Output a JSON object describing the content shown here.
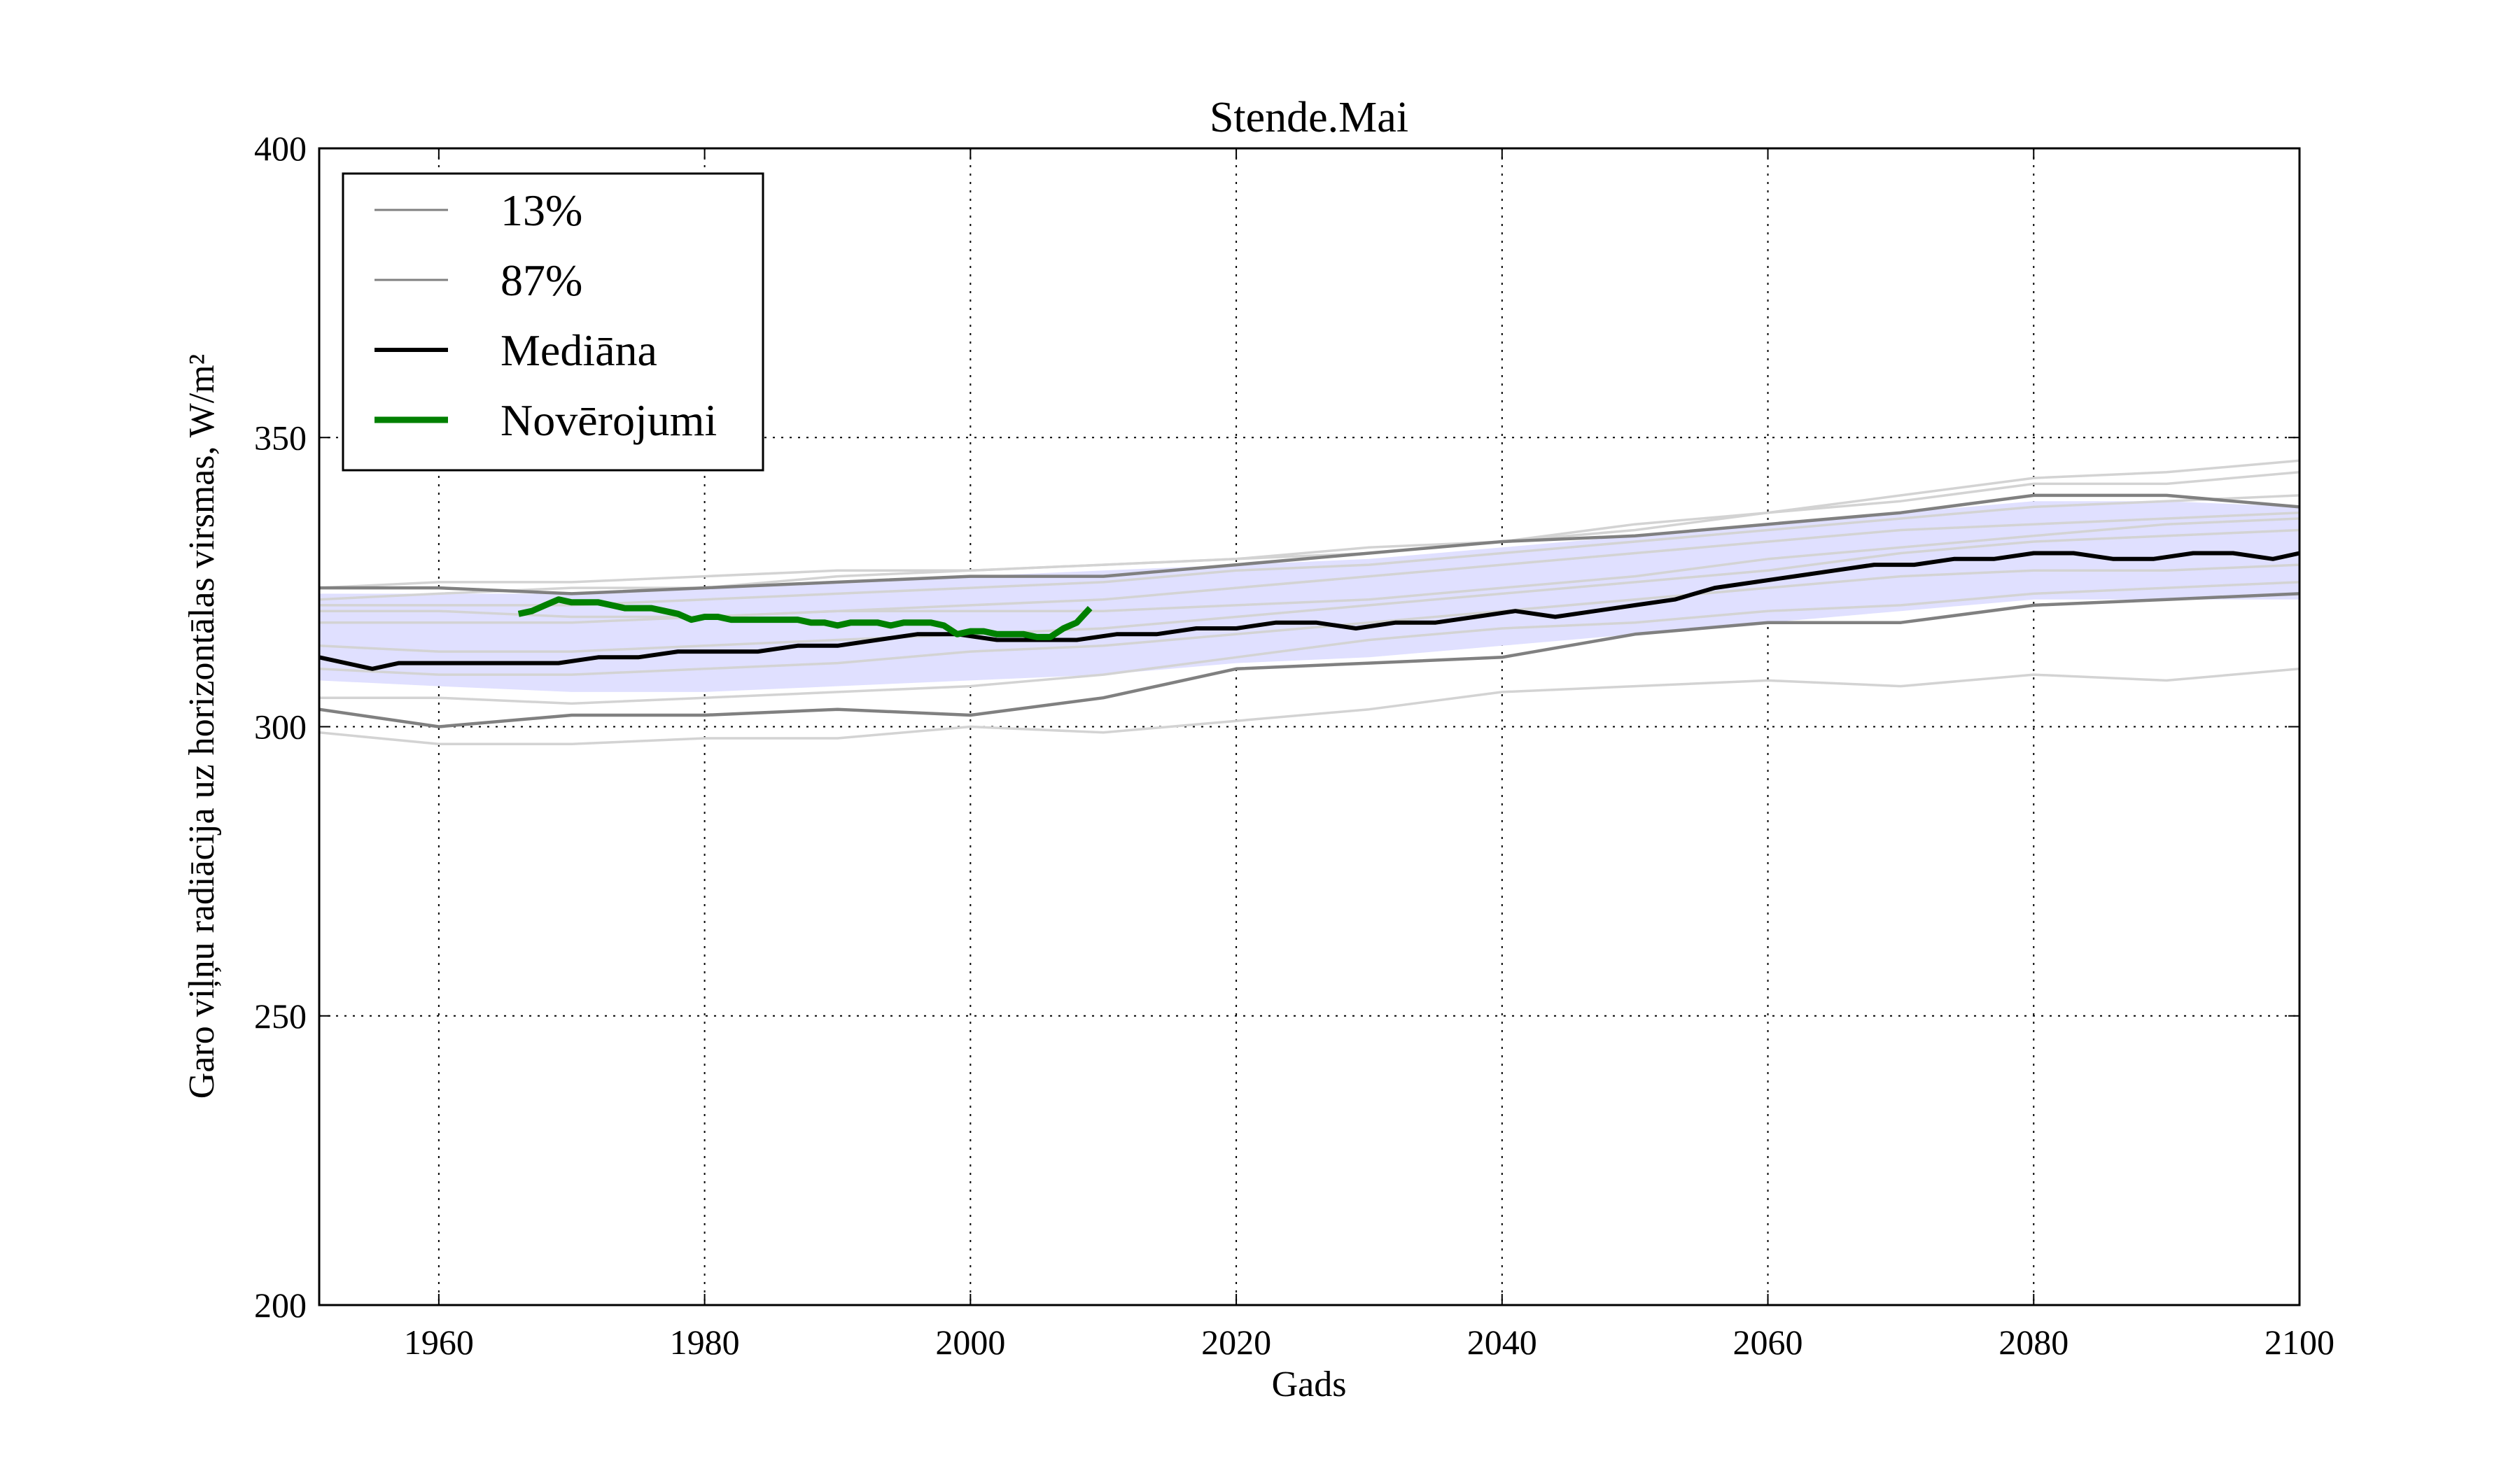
{
  "chart_data": {
    "type": "line",
    "title": "Stende.Mai",
    "xlabel": "Gads",
    "ylabel": "Garo viļņu radiācija uz horizontālas virsmas, W/m²",
    "xlim": [
      1951,
      2100
    ],
    "ylim": [
      200,
      400
    ],
    "xticks": [
      1960,
      1980,
      2000,
      2020,
      2040,
      2060,
      2080,
      2100
    ],
    "yticks": [
      200,
      250,
      300,
      350,
      400
    ],
    "grid": true,
    "legend_position": "top-left",
    "band": {
      "lower_name": "13%",
      "upper_name": "87%",
      "fill_color": "#e0e0ff",
      "x": [
        1951,
        1960,
        1970,
        1980,
        1990,
        2000,
        2010,
        2020,
        2030,
        2040,
        2050,
        2060,
        2070,
        2080,
        2090,
        2100
      ],
      "lower": [
        308,
        307,
        306,
        306,
        307,
        308,
        309,
        311,
        312,
        314,
        316,
        318,
        320,
        322,
        322,
        322
      ],
      "upper": [
        323,
        323,
        323,
        324,
        325,
        326,
        327,
        328,
        329,
        331,
        333,
        335,
        337,
        339,
        339,
        338
      ]
    },
    "series": [
      {
        "name": "Mediāna",
        "color": "#000000",
        "x": [
          1951,
          1953,
          1955,
          1957,
          1960,
          1963,
          1966,
          1969,
          1972,
          1975,
          1978,
          1981,
          1984,
          1987,
          1990,
          1993,
          1996,
          1999,
          2002,
          2005,
          2008,
          2011,
          2014,
          2017,
          2020,
          2023,
          2026,
          2029,
          2032,
          2035,
          2038,
          2041,
          2044,
          2047,
          2050,
          2053,
          2056,
          2059,
          2062,
          2065,
          2068,
          2071,
          2074,
          2077,
          2080,
          2083,
          2086,
          2089,
          2092,
          2095,
          2098,
          2100
        ],
        "values": [
          312,
          311,
          310,
          311,
          311,
          311,
          311,
          311,
          312,
          312,
          313,
          313,
          313,
          314,
          314,
          315,
          316,
          316,
          315,
          315,
          315,
          316,
          316,
          317,
          317,
          318,
          318,
          317,
          318,
          318,
          319,
          320,
          319,
          320,
          321,
          322,
          324,
          325,
          326,
          327,
          328,
          328,
          329,
          329,
          330,
          330,
          329,
          329,
          330,
          330,
          329,
          330
        ]
      },
      {
        "name": "Novērojumi",
        "color": "#008000",
        "x": [
          1966,
          1967,
          1968,
          1969,
          1970,
          1971,
          1972,
          1973,
          1974,
          1975,
          1976,
          1977,
          1978,
          1979,
          1980,
          1981,
          1982,
          1983,
          1984,
          1985,
          1986,
          1987,
          1988,
          1989,
          1990,
          1991,
          1992,
          1993,
          1994,
          1995,
          1996,
          1997,
          1998,
          1999,
          2000,
          2001,
          2002,
          2003,
          2004,
          2005,
          2006,
          2007,
          2008,
          2009
        ],
        "values": [
          319.5,
          320,
          321,
          322,
          321.5,
          321.5,
          321.5,
          321,
          320.5,
          320.5,
          320.5,
          320,
          319.5,
          318.5,
          319,
          319,
          318.5,
          318.5,
          318.5,
          318.5,
          318.5,
          318.5,
          318,
          318,
          317.5,
          318,
          318,
          318,
          317.5,
          318,
          318,
          318,
          317.5,
          316,
          316.5,
          316.5,
          316,
          316,
          316,
          315.5,
          315.5,
          317,
          318,
          320.5
        ]
      }
    ],
    "ensemble_series": [
      {
        "color": "#808080",
        "x": [
          1951,
          1960,
          1970,
          1980,
          1990,
          2000,
          2010,
          2020,
          2030,
          2040,
          2050,
          2060,
          2070,
          2080,
          2090,
          2100
        ],
        "values": [
          303,
          300,
          302,
          302,
          303,
          302,
          305,
          310,
          311,
          312,
          316,
          318,
          318,
          321,
          322,
          323
        ]
      },
      {
        "color": "#808080",
        "x": [
          1951,
          1960,
          1970,
          1980,
          1990,
          2000,
          2010,
          2020,
          2030,
          2040,
          2050,
          2060,
          2070,
          2080,
          2090,
          2100
        ],
        "values": [
          324,
          324,
          323,
          324,
          325,
          326,
          326,
          328,
          330,
          332,
          333,
          335,
          337,
          340,
          340,
          338
        ]
      },
      {
        "color": "#d3d3d3",
        "x": [
          1951,
          1960,
          1970,
          1980,
          1990,
          2000,
          2010,
          2020,
          2030,
          2040,
          2050,
          2060,
          2070,
          2080,
          2090,
          2100
        ],
        "values": [
          299,
          297,
          297,
          298,
          298,
          300,
          299,
          301,
          303,
          306,
          307,
          308,
          307,
          309,
          308,
          310
        ]
      },
      {
        "color": "#d3d3d3",
        "x": [
          1951,
          1960,
          1970,
          1980,
          1990,
          2000,
          2010,
          2020,
          2030,
          2040,
          2050,
          2060,
          2070,
          2080,
          2090,
          2100
        ],
        "values": [
          305,
          305,
          304,
          305,
          306,
          307,
          309,
          312,
          315,
          317,
          318,
          320,
          321,
          323,
          324,
          325
        ]
      },
      {
        "color": "#d3d3d3",
        "x": [
          1951,
          1960,
          1970,
          1980,
          1990,
          2000,
          2010,
          2020,
          2030,
          2040,
          2050,
          2060,
          2070,
          2080,
          2090,
          2100
        ],
        "values": [
          310,
          309,
          309,
          310,
          311,
          313,
          314,
          316,
          318,
          320,
          322,
          324,
          326,
          327,
          327,
          328
        ]
      },
      {
        "color": "#d3d3d3",
        "x": [
          1951,
          1960,
          1970,
          1980,
          1990,
          2000,
          2010,
          2020,
          2030,
          2040,
          2050,
          2060,
          2070,
          2080,
          2090,
          2100
        ],
        "values": [
          314,
          313,
          313,
          314,
          315,
          316,
          317,
          319,
          321,
          323,
          325,
          327,
          330,
          332,
          333,
          334
        ]
      },
      {
        "color": "#d3d3d3",
        "x": [
          1951,
          1960,
          1970,
          1980,
          1990,
          2000,
          2010,
          2020,
          2030,
          2040,
          2050,
          2060,
          2070,
          2080,
          2090,
          2100
        ],
        "values": [
          318,
          318,
          318,
          319,
          320,
          321,
          322,
          324,
          326,
          328,
          330,
          332,
          334,
          335,
          336,
          337
        ]
      },
      {
        "color": "#d3d3d3",
        "x": [
          1951,
          1960,
          1970,
          1980,
          1990,
          2000,
          2010,
          2020,
          2030,
          2040,
          2050,
          2060,
          2070,
          2080,
          2090,
          2100
        ],
        "values": [
          321,
          321,
          321,
          322,
          323,
          324,
          325,
          327,
          328,
          330,
          332,
          334,
          336,
          338,
          339,
          340
        ]
      },
      {
        "color": "#d3d3d3",
        "x": [
          1951,
          1960,
          1970,
          1980,
          1990,
          2000,
          2010,
          2020,
          2030,
          2040,
          2050,
          2060,
          2070,
          2080,
          2090,
          2100
        ],
        "values": [
          324,
          325,
          325,
          326,
          327,
          327,
          328,
          329,
          330,
          332,
          334,
          337,
          339,
          342,
          342,
          344
        ]
      },
      {
        "color": "#d3d3d3",
        "x": [
          1951,
          1960,
          1970,
          1980,
          1990,
          2000,
          2010,
          2020,
          2030,
          2040,
          2050,
          2060,
          2070,
          2080,
          2090,
          2100
        ],
        "values": [
          320,
          320,
          319,
          319,
          320,
          320,
          320,
          321,
          322,
          324,
          326,
          329,
          331,
          333,
          335,
          336
        ]
      },
      {
        "color": "#d3d3d3",
        "x": [
          1951,
          1960,
          1970,
          1980,
          1990,
          2000,
          2010,
          2020,
          2030,
          2040,
          2050,
          2060,
          2070,
          2080,
          2090,
          2100
        ],
        "values": [
          322,
          323,
          324,
          324,
          326,
          327,
          328,
          329,
          331,
          332,
          335,
          337,
          340,
          343,
          344,
          346
        ]
      }
    ]
  },
  "legend": {
    "items": [
      {
        "label": "13%",
        "color": "#808080",
        "width": "thin"
      },
      {
        "label": "87%",
        "color": "#808080",
        "width": "thin"
      },
      {
        "label": "Mediāna",
        "color": "#000000",
        "width": "medium"
      },
      {
        "label": "Novērojumi",
        "color": "#008000",
        "width": "thick"
      }
    ]
  }
}
